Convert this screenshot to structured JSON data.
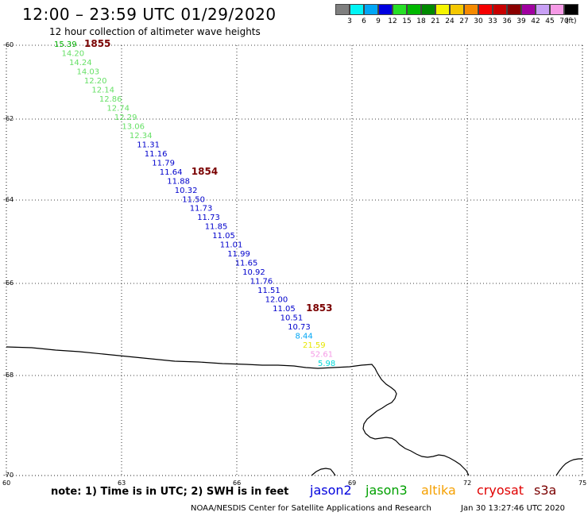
{
  "header": {
    "title": "12:00 – 23:59 UTC 01/29/2020",
    "subtitle": "12 hour collection of altimeter wave heights"
  },
  "legend": {
    "unit": "(ft)",
    "items": [
      {
        "label": "3",
        "color": "#7f7f7f"
      },
      {
        "label": "6",
        "color": "#00f5f5"
      },
      {
        "label": "9",
        "color": "#00a6f5"
      },
      {
        "label": "12",
        "color": "#0000e0"
      },
      {
        "label": "15",
        "color": "#26e026"
      },
      {
        "label": "18",
        "color": "#00b800"
      },
      {
        "label": "21",
        "color": "#008a00"
      },
      {
        "label": "24",
        "color": "#f5f500"
      },
      {
        "label": "27",
        "color": "#f5c800"
      },
      {
        "label": "30",
        "color": "#f58a00"
      },
      {
        "label": "33",
        "color": "#f50000"
      },
      {
        "label": "36",
        "color": "#c80000"
      },
      {
        "label": "39",
        "color": "#8a0000"
      },
      {
        "label": "42",
        "color": "#a000a0"
      },
      {
        "label": "45",
        "color": "#c8a0f5"
      },
      {
        "label": "70",
        "color": "#f59ae6"
      },
      {
        "label": "",
        "color": "#000000"
      }
    ]
  },
  "map": {
    "lat_labels": [
      "-60",
      "-62",
      "-64",
      "-66",
      "-68",
      "-70"
    ],
    "lon_labels": [
      "60",
      "63",
      "66",
      "69",
      "72",
      "75"
    ],
    "pass_ids": [
      {
        "label": "1855",
        "color": "#7a0000"
      },
      {
        "label": "1854",
        "color": "#7a0000"
      },
      {
        "label": "1853",
        "color": "#7a0000"
      }
    ],
    "observations": [
      {
        "value": "15.39",
        "color": "#00b000"
      },
      {
        "value": "14.20",
        "color": "#66e066"
      },
      {
        "value": "14.24",
        "color": "#66e066"
      },
      {
        "value": "14.03",
        "color": "#66e066"
      },
      {
        "value": "12.20",
        "color": "#66e066"
      },
      {
        "value": "12.14",
        "color": "#66e066"
      },
      {
        "value": "12.86",
        "color": "#66e066"
      },
      {
        "value": "12.74",
        "color": "#66e066"
      },
      {
        "value": "12.29",
        "color": "#66e066"
      },
      {
        "value": "13.06",
        "color": "#66e066"
      },
      {
        "value": "12.34",
        "color": "#66e066"
      },
      {
        "value": "11.31",
        "color": "#0000cc"
      },
      {
        "value": "11.16",
        "color": "#0000cc"
      },
      {
        "value": "11.79",
        "color": "#0000cc"
      },
      {
        "value": "11.64",
        "color": "#0000cc"
      },
      {
        "value": "11.88",
        "color": "#0000cc"
      },
      {
        "value": "10.32",
        "color": "#0000cc"
      },
      {
        "value": "11.50",
        "color": "#0000cc"
      },
      {
        "value": "11.73",
        "color": "#0000cc"
      },
      {
        "value": "11.73",
        "color": "#0000cc"
      },
      {
        "value": "11.85",
        "color": "#0000cc"
      },
      {
        "value": "11.05",
        "color": "#0000cc"
      },
      {
        "value": "11.01",
        "color": "#0000cc"
      },
      {
        "value": "11.99",
        "color": "#0000cc"
      },
      {
        "value": "11.65",
        "color": "#0000cc"
      },
      {
        "value": "10.92",
        "color": "#0000cc"
      },
      {
        "value": "11.76",
        "color": "#0000cc"
      },
      {
        "value": "11.51",
        "color": "#0000cc"
      },
      {
        "value": "12.00",
        "color": "#0000cc"
      },
      {
        "value": "11.05",
        "color": "#0000cc"
      },
      {
        "value": "10.51",
        "color": "#0000cc"
      },
      {
        "value": "10.73",
        "color": "#0000cc"
      },
      {
        "value": "8.44",
        "color": "#00a6f5"
      },
      {
        "value": "21.59",
        "color": "#e6e600"
      },
      {
        "value": "52.61",
        "color": "#f59ae6"
      },
      {
        "value": "5.98",
        "color": "#00d8d8"
      }
    ]
  },
  "footer": {
    "note": "note:  1) Time is in UTC;  2) SWH is in feet",
    "satellites": [
      {
        "label": "jason2",
        "color": "#0000dd"
      },
      {
        "label": "jason3",
        "color": "#00a000"
      },
      {
        "label": "altika",
        "color": "#f5a000"
      },
      {
        "label": "cryosat",
        "color": "#e00000"
      },
      {
        "label": "s3a",
        "color": "#7a0000"
      }
    ],
    "credit": "NOAA/NESDIS Center for Satellite Applications and Research",
    "timestamp": "Jan 30 13:27:46 UTC 2020"
  }
}
